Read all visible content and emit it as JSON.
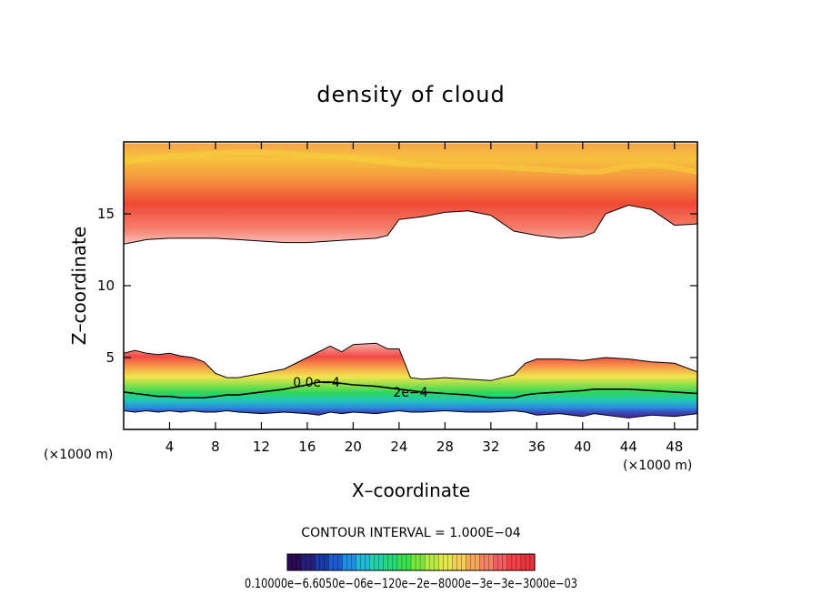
{
  "chart_data": {
    "type": "contour",
    "title": "density of cloud",
    "xlabel": "X–coordinate",
    "ylabel": "Z–coordinate",
    "x_unit_left": "(×1000 m)",
    "x_unit_right": "(×1000 m)",
    "xlim": [
      0,
      50
    ],
    "ylim": [
      0,
      20
    ],
    "x_ticks": [
      4,
      8,
      12,
      16,
      20,
      24,
      28,
      32,
      36,
      40,
      44,
      48
    ],
    "y_ticks": [
      5,
      10,
      15
    ],
    "contour_interval_label": "CONTOUR INTERVAL = 1.000E−04",
    "contour_labels": [
      {
        "text": "2e−4",
        "x": 25.0,
        "z": 2.6
      },
      {
        "text": "0.0e−4",
        "x": 16.8,
        "z": 3.3
      }
    ],
    "colorbar_labels_text": "0.10000e−6.6050e−06e−120e−2e−8000e−3e−3e−3000e−03",
    "cloud_layers": [
      {
        "name": "upper",
        "x": [
          0,
          2,
          4,
          6,
          8,
          10,
          12,
          14,
          16,
          18,
          20,
          22,
          23,
          24,
          26,
          28,
          30,
          32,
          34,
          36,
          38,
          40,
          41,
          42,
          44,
          46,
          48,
          50
        ],
        "base": [
          12.9,
          13.2,
          13.3,
          13.3,
          13.3,
          13.2,
          13.1,
          13.0,
          13.0,
          13.1,
          13.2,
          13.3,
          13.5,
          14.6,
          14.8,
          15.1,
          15.2,
          14.9,
          13.8,
          13.5,
          13.3,
          13.4,
          13.7,
          15.0,
          15.6,
          15.3,
          14.2,
          14.3
        ],
        "top": [
          19.9,
          19.9,
          19.9,
          19.9,
          19.9,
          19.9,
          19.9,
          19.9,
          19.9,
          19.9,
          19.9,
          19.9,
          19.9,
          19.9,
          19.9,
          19.9,
          19.9,
          19.9,
          19.9,
          19.9,
          19.9,
          19.9,
          19.9,
          19.9,
          19.9,
          19.9,
          19.9,
          19.9
        ],
        "core": [
          18.6,
          18.8,
          19.0,
          19.1,
          19.2,
          19.3,
          19.3,
          19.2,
          19.1,
          19.0,
          18.9,
          18.7,
          18.6,
          18.5,
          18.4,
          18.3,
          18.3,
          18.3,
          18.2,
          18.1,
          18.0,
          17.9,
          17.9,
          18.0,
          18.3,
          18.4,
          18.2,
          17.9
        ]
      },
      {
        "name": "lower",
        "x": [
          0,
          1,
          2,
          3,
          4,
          5,
          6,
          7,
          8,
          9,
          10,
          12,
          14,
          16,
          17,
          18,
          19,
          20,
          22,
          23,
          24,
          25,
          26,
          28,
          30,
          32,
          34,
          35,
          36,
          38,
          40,
          41,
          42,
          44,
          46,
          48,
          50
        ],
        "top": [
          5.3,
          5.5,
          5.3,
          5.2,
          5.3,
          5.1,
          5.0,
          4.7,
          3.9,
          3.6,
          3.6,
          3.9,
          4.2,
          5.0,
          5.4,
          5.8,
          5.4,
          5.9,
          6.0,
          5.6,
          5.6,
          3.6,
          3.5,
          3.6,
          3.5,
          3.4,
          3.8,
          4.6,
          4.9,
          4.9,
          4.8,
          4.9,
          5.0,
          4.9,
          4.7,
          4.6,
          4.0
        ],
        "base": [
          1.3,
          1.2,
          1.3,
          1.2,
          1.3,
          1.2,
          1.3,
          1.2,
          1.2,
          1.3,
          1.2,
          1.1,
          1.2,
          1.1,
          1.0,
          1.2,
          1.1,
          1.2,
          1.1,
          1.2,
          1.3,
          1.2,
          1.2,
          1.3,
          1.2,
          1.2,
          1.3,
          1.2,
          1.0,
          1.1,
          0.9,
          1.1,
          1.0,
          0.8,
          1.0,
          0.9,
          1.1
        ],
        "contour_2e4": [
          2.6,
          2.5,
          2.4,
          2.3,
          2.3,
          2.2,
          2.2,
          2.2,
          2.3,
          2.4,
          2.4,
          2.6,
          2.8,
          3.1,
          3.3,
          3.3,
          3.2,
          3.1,
          3.0,
          2.9,
          2.8,
          2.7,
          2.6,
          2.5,
          2.4,
          2.2,
          2.2,
          2.4,
          2.5,
          2.6,
          2.7,
          2.8,
          2.8,
          2.8,
          2.7,
          2.6,
          2.5
        ]
      }
    ],
    "colorbar_colors": [
      "#2a0a55",
      "#26207a",
      "#1a3aa8",
      "#1e5ad0",
      "#1f8fe6",
      "#21b9d6",
      "#23d0a8",
      "#26d97a",
      "#3ae04f",
      "#7ae63c",
      "#b7ea42",
      "#e2e84a",
      "#f2cf52",
      "#f5a85a",
      "#f58263",
      "#f25d63",
      "#f43f46",
      "#e7343e"
    ]
  }
}
